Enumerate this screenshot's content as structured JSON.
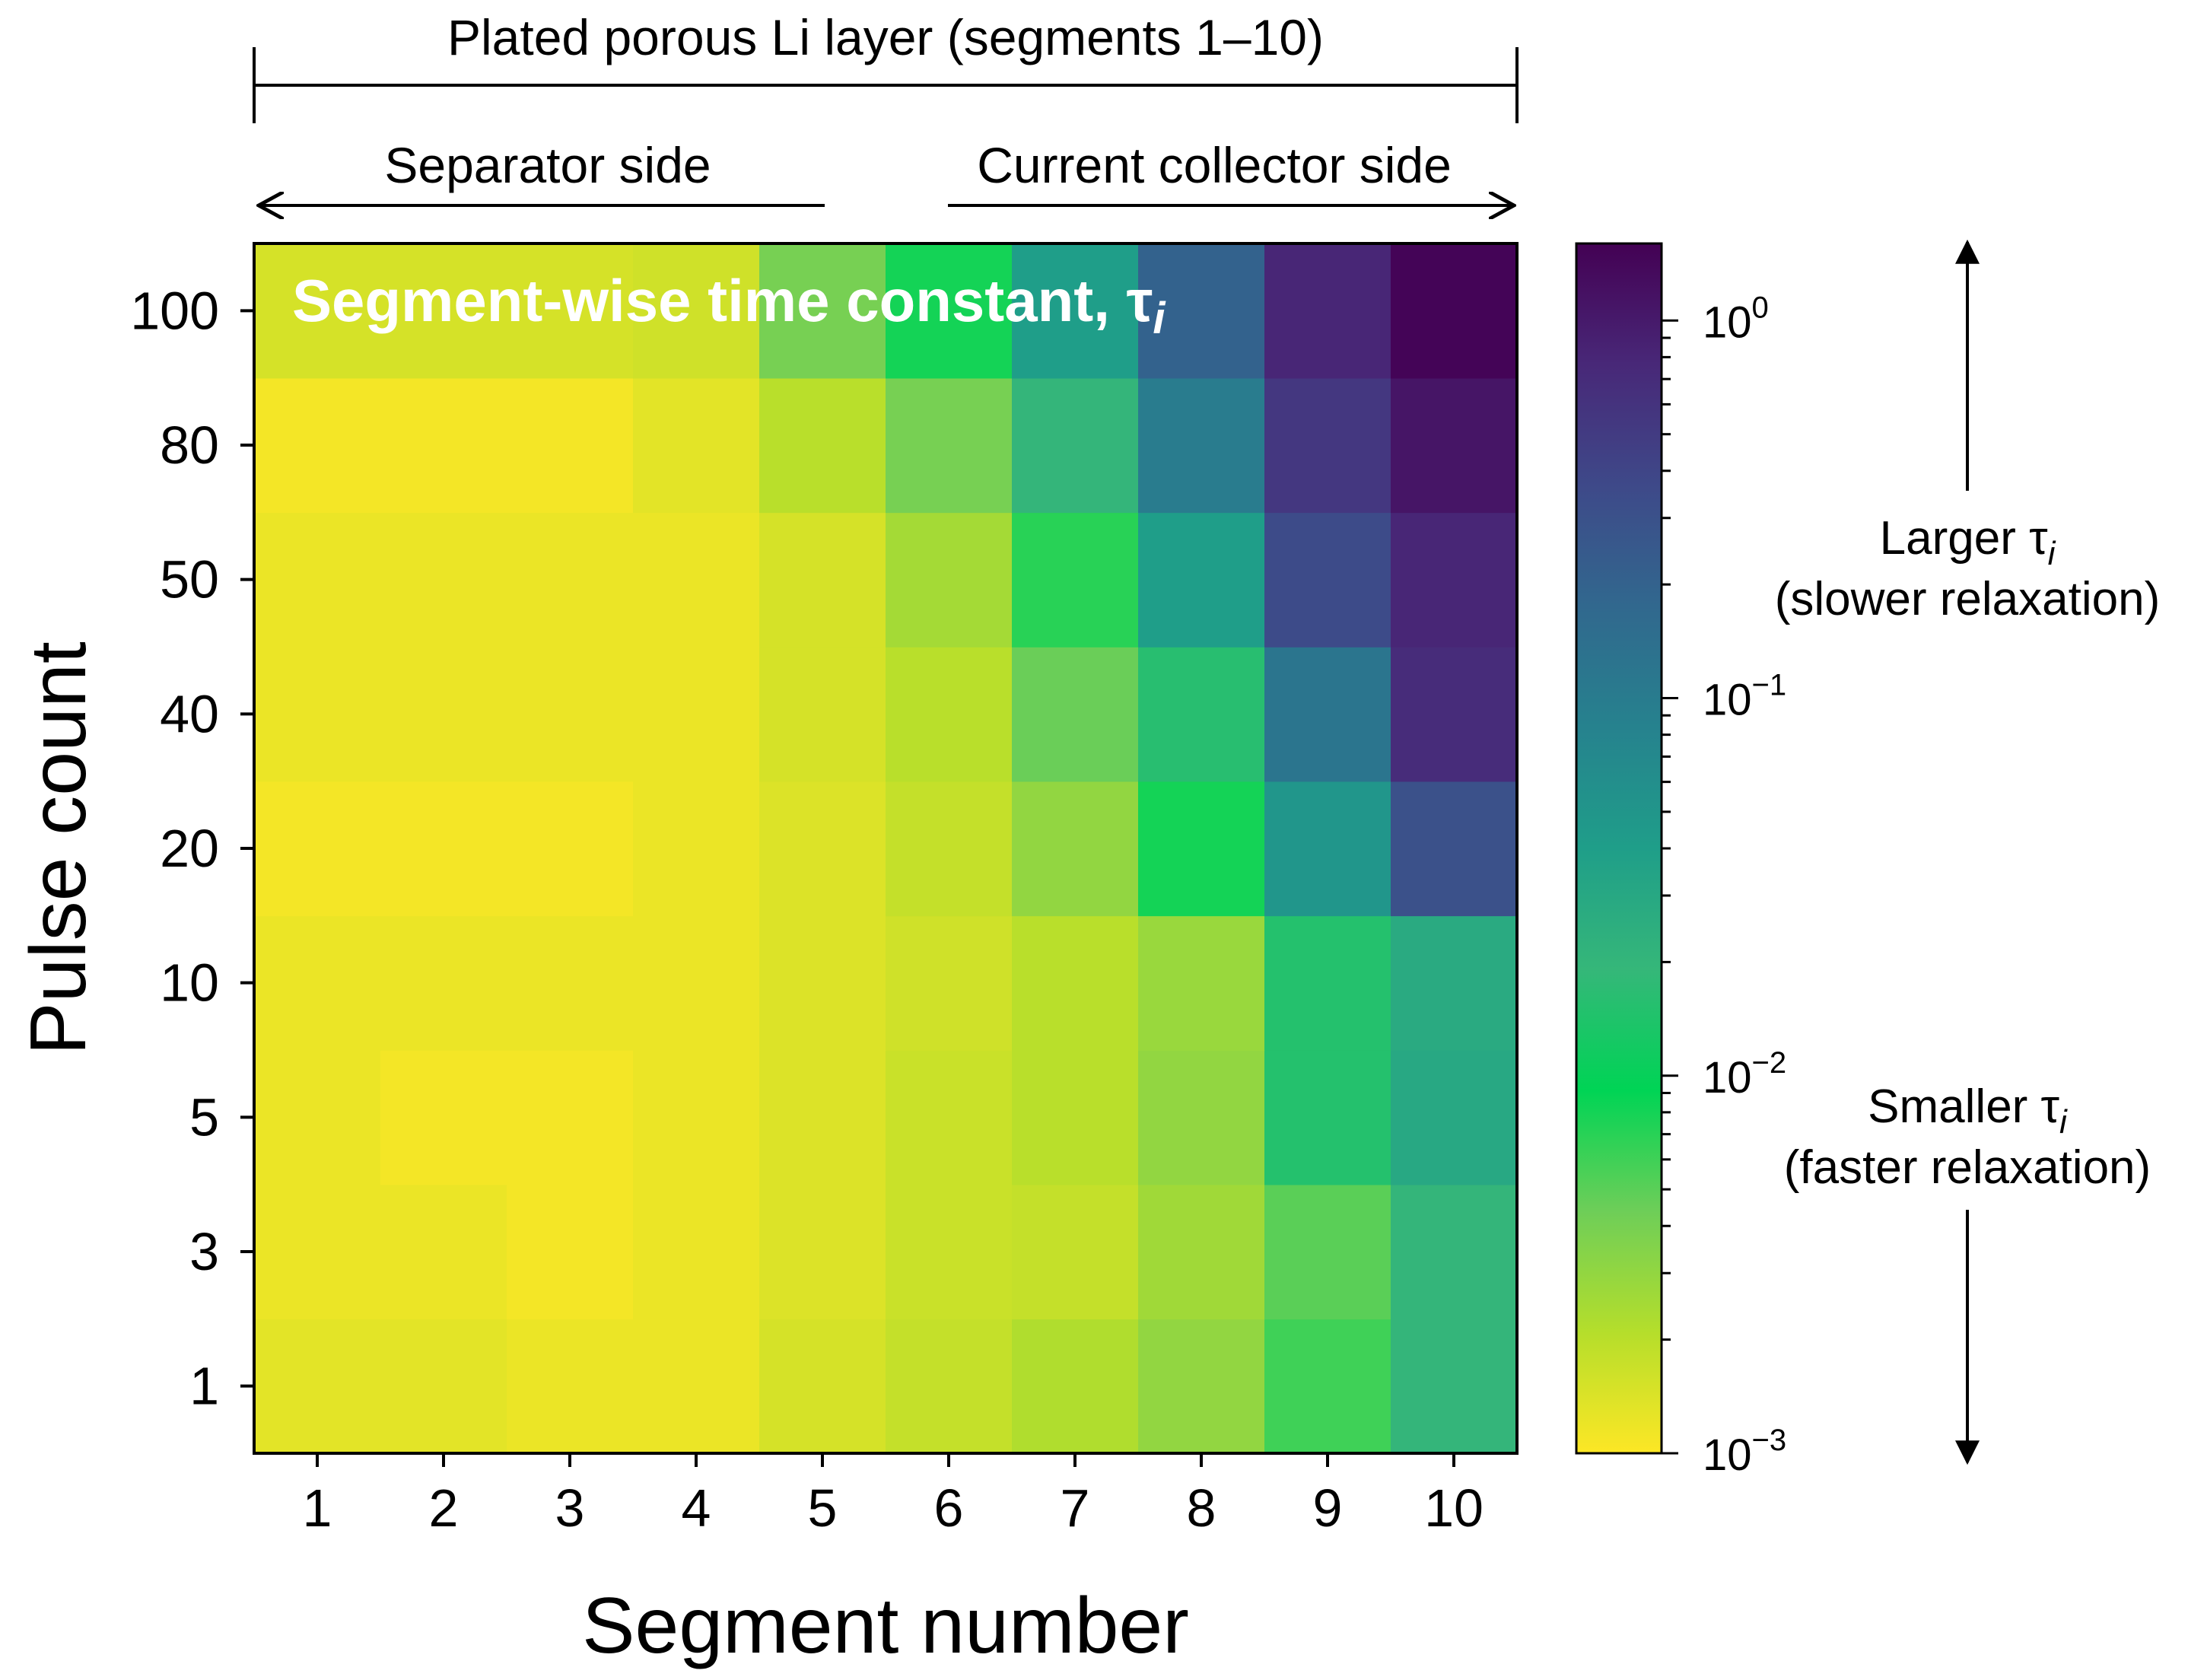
{
  "chart_data": {
    "type": "heatmap",
    "title": "Segment-wise time constant, τ",
    "title_subscript": "i",
    "xlabel": "Segment number",
    "ylabel": "Pulse count",
    "x": [
      1,
      2,
      3,
      4,
      5,
      6,
      7,
      8,
      9,
      10
    ],
    "y": [
      "1",
      "3",
      "5",
      "10",
      "20",
      "40",
      "50",
      "80",
      "100"
    ],
    "color_scale": "log",
    "color_range": [
      0.001,
      1.6
    ],
    "colorbar_ticks": [
      {
        "base": "10",
        "exp": "0",
        "value": 1
      },
      {
        "base": "10",
        "exp": "−1",
        "value": 0.1
      },
      {
        "base": "10",
        "exp": "−2",
        "value": 0.01
      },
      {
        "base": "10",
        "exp": "−3",
        "value": 0.001
      }
    ],
    "z": [
      [
        0.0013,
        0.0013,
        0.0012,
        0.0012,
        0.0015,
        0.0018,
        0.0022,
        0.003,
        0.006,
        0.02
      ],
      [
        0.0012,
        0.0012,
        0.0011,
        0.0012,
        0.0014,
        0.0017,
        0.0018,
        0.0026,
        0.005,
        0.02
      ],
      [
        0.0012,
        0.0011,
        0.0011,
        0.0012,
        0.0014,
        0.0017,
        0.002,
        0.003,
        0.015,
        0.03
      ],
      [
        0.0012,
        0.0012,
        0.0012,
        0.0012,
        0.0014,
        0.0016,
        0.002,
        0.0028,
        0.015,
        0.028
      ],
      [
        0.0011,
        0.0011,
        0.0011,
        0.0012,
        0.0014,
        0.0018,
        0.003,
        0.008,
        0.05,
        0.3
      ],
      [
        0.0012,
        0.0012,
        0.0012,
        0.0012,
        0.0015,
        0.002,
        0.0045,
        0.016,
        0.12,
        0.7
      ],
      [
        0.0012,
        0.0012,
        0.0012,
        0.0012,
        0.0015,
        0.0025,
        0.007,
        0.04,
        0.35,
        0.8
      ],
      [
        0.0011,
        0.0011,
        0.0011,
        0.0013,
        0.002,
        0.004,
        0.02,
        0.1,
        0.55,
        1.1
      ],
      [
        0.0015,
        0.0015,
        0.0015,
        0.0016,
        0.004,
        0.008,
        0.04,
        0.2,
        0.8,
        1.5
      ]
    ]
  },
  "annotations": {
    "top_bracket": "Plated porous Li layer (segments 1–10)",
    "left_arrow": "Separator side",
    "right_arrow": "Current collector side",
    "larger_line1": "Larger τ",
    "larger_sub": "i",
    "larger_line2": "(slower relaxation)",
    "smaller_line1": "Smaller τ",
    "smaller_sub": "i",
    "smaller_line2": "(faster relaxation)"
  },
  "colors": {
    "viridis_stops": [
      "#440154",
      "#482878",
      "#3e4989",
      "#31688e",
      "#26828e",
      "#1f9e89",
      "#35b779",
      "#00d455",
      "#6ece58",
      "#b5de2b",
      "#fde725"
    ]
  }
}
